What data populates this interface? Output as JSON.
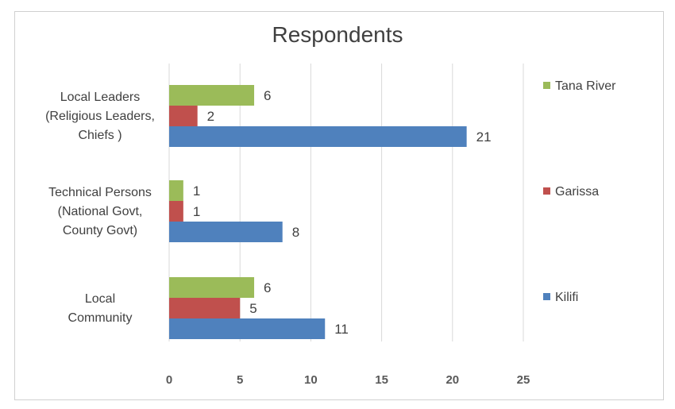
{
  "chart_data": {
    "type": "bar",
    "orientation": "horizontal",
    "title": "Respondents",
    "categories": [
      [
        "Local Leaders",
        "(Religious Leaders,",
        "Chiefs )"
      ],
      [
        "Technical Persons",
        "(National Govt,",
        "County Govt)"
      ],
      [
        "Local",
        "Community"
      ]
    ],
    "series": [
      {
        "name": "Tana River",
        "color": "#9bbb59",
        "values": [
          6,
          1,
          6
        ]
      },
      {
        "name": "Garissa",
        "color": "#c0504d",
        "values": [
          2,
          1,
          5
        ]
      },
      {
        "name": "Kilifi",
        "color": "#4f81bd",
        "values": [
          21,
          8,
          11
        ]
      }
    ],
    "xlim": [
      0,
      25
    ],
    "xticks": [
      0,
      5,
      10,
      15,
      20,
      25
    ],
    "grid": true,
    "legend_position": "right"
  }
}
